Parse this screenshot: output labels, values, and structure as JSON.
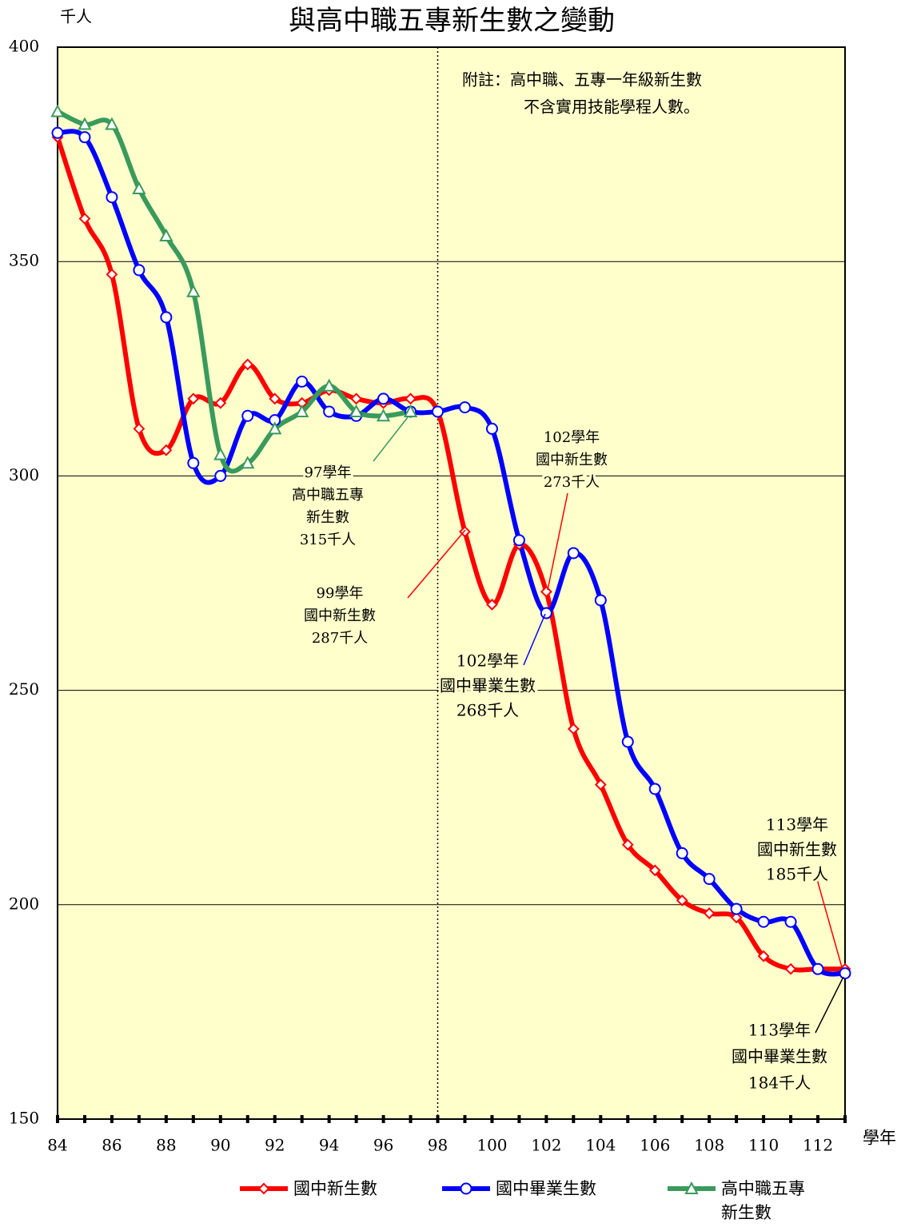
{
  "chart_data": {
    "type": "line",
    "title": "與高中職五專新生數之變動",
    "ylabel": "千人",
    "xlabel": "學年",
    "note": [
      "附註：高中職、五專一年級新生數",
      "不含實用技能學程人數。"
    ],
    "x": [
      84,
      85,
      86,
      87,
      88,
      89,
      90,
      91,
      92,
      93,
      94,
      95,
      96,
      97,
      98,
      99,
      100,
      101,
      102,
      103,
      104,
      105,
      106,
      107,
      108,
      109,
      110,
      111,
      112,
      113
    ],
    "xlim": [
      84,
      113
    ],
    "xticks": [
      84,
      86,
      88,
      90,
      92,
      94,
      96,
      98,
      100,
      102,
      104,
      106,
      108,
      110,
      112
    ],
    "ylim": [
      150,
      400
    ],
    "yticks": [
      150,
      200,
      250,
      300,
      350,
      400
    ],
    "grid": true,
    "vline": 98,
    "background": "#ffffcc",
    "series": [
      {
        "name": "國中新生數",
        "color": "#ff0000",
        "marker": "diamond",
        "values": [
          379,
          360,
          347,
          311,
          306,
          318,
          317,
          326,
          318,
          317,
          320,
          318,
          317,
          318,
          315,
          287,
          270,
          284,
          273,
          241,
          228,
          214,
          208,
          201,
          198,
          197,
          188,
          185,
          185,
          185
        ]
      },
      {
        "name": "國中畢業生數",
        "color": "#0000ff",
        "marker": "circle",
        "values": [
          380,
          379,
          365,
          348,
          337,
          303,
          300,
          314,
          313,
          322,
          315,
          314,
          318,
          315,
          315,
          316,
          311,
          285,
          268,
          282,
          271,
          238,
          227,
          212,
          206,
          199,
          196,
          196,
          185,
          184
        ]
      },
      {
        "name": "高中職五專新生數",
        "color": "#3a9a5c",
        "marker": "triangle",
        "values": [
          385,
          382,
          382,
          367,
          356,
          343,
          305,
          303,
          311,
          315,
          321,
          315,
          314,
          315,
          null,
          null,
          null,
          null,
          null,
          null,
          null,
          null,
          null,
          null,
          null,
          null,
          null,
          null,
          null,
          null
        ]
      }
    ],
    "annotations": [
      {
        "lines": [
          "97學年",
          "高中職五專",
          "新生數",
          "315千人"
        ]
      },
      {
        "lines": [
          "99學年",
          "國中新生數",
          "287千人"
        ]
      },
      {
        "lines": [
          "102學年",
          "國中新生數",
          "273千人"
        ]
      },
      {
        "lines": [
          "102學年",
          "國中畢業生數",
          "268千人"
        ]
      },
      {
        "lines": [
          "113學年",
          "國中新生數",
          "185千人"
        ]
      },
      {
        "lines": [
          "113學年",
          "國中畢業生數",
          "184千人"
        ]
      }
    ]
  }
}
